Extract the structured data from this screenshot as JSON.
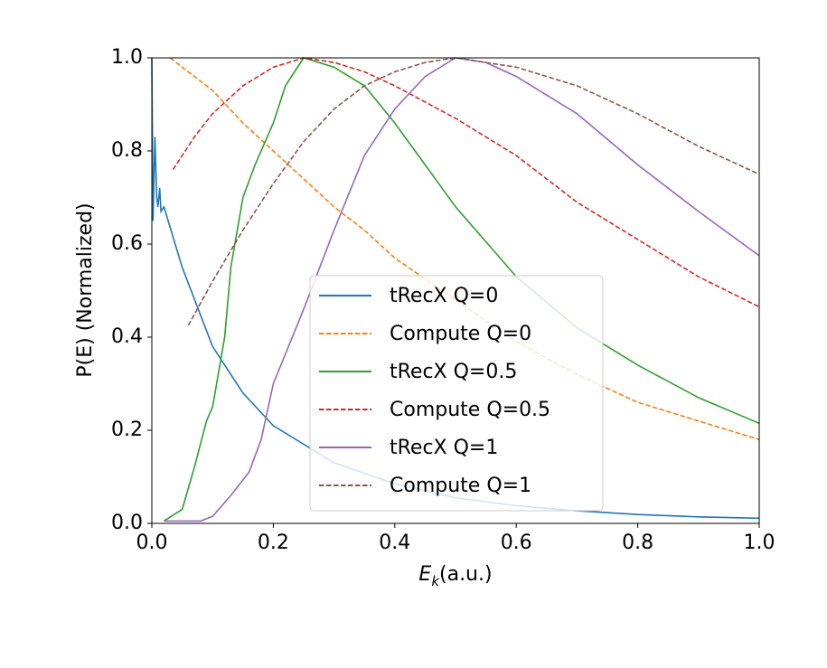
{
  "chart_data": {
    "type": "line",
    "xlabel": [
      "E",
      "k",
      "(a.u.)"
    ],
    "ylabel": "P(E) (Normalized)",
    "xlim": [
      0,
      1
    ],
    "ylim": [
      0,
      1
    ],
    "xticks": [
      {
        "value": 0,
        "label": "0.0"
      },
      0.2,
      0.4,
      0.6,
      0.8,
      {
        "value": 1,
        "label": "1.0"
      }
    ],
    "yticks": [
      {
        "value": 0,
        "label": "0.0"
      },
      0.2,
      0.4,
      0.6,
      0.8,
      {
        "value": 1,
        "label": "1.0"
      }
    ],
    "legend": "lower center",
    "series": [
      {
        "name": "tRecX Q=0",
        "color": "#1f77b4",
        "dashed": false,
        "x": [
          0,
          0.002,
          0.005,
          0.008,
          0.01,
          0.013,
          0.015,
          0.02,
          0.05,
          0.1,
          0.15,
          0.2,
          0.3,
          0.4,
          0.5,
          0.6,
          0.7,
          0.8,
          0.9,
          1.0
        ],
        "values": [
          1.0,
          0.65,
          0.83,
          0.7,
          0.68,
          0.72,
          0.67,
          0.68,
          0.55,
          0.38,
          0.28,
          0.21,
          0.13,
          0.085,
          0.055,
          0.038,
          0.027,
          0.019,
          0.014,
          0.011
        ]
      },
      {
        "name": "Compute Q=0",
        "color": "#ff7f0e",
        "dashed": true,
        "x": [
          0.03,
          0.1,
          0.15,
          0.2,
          0.25,
          0.3,
          0.35,
          0.4,
          0.5,
          0.6,
          0.7,
          0.8,
          0.9,
          1.0
        ],
        "values": [
          1.0,
          0.93,
          0.86,
          0.8,
          0.74,
          0.68,
          0.63,
          0.57,
          0.48,
          0.39,
          0.32,
          0.26,
          0.22,
          0.18
        ]
      },
      {
        "name": "tRecX Q=0.5",
        "color": "#2ca02c",
        "dashed": false,
        "x": [
          0.02,
          0.05,
          0.07,
          0.09,
          0.1,
          0.12,
          0.13,
          0.15,
          0.17,
          0.2,
          0.22,
          0.25,
          0.3,
          0.35,
          0.4,
          0.45,
          0.5,
          0.6,
          0.7,
          0.8,
          0.9,
          1.0
        ],
        "values": [
          0.005,
          0.03,
          0.12,
          0.22,
          0.25,
          0.4,
          0.55,
          0.7,
          0.77,
          0.86,
          0.94,
          1.0,
          0.98,
          0.94,
          0.86,
          0.77,
          0.68,
          0.53,
          0.42,
          0.34,
          0.27,
          0.215
        ]
      },
      {
        "name": "Compute Q=0.5",
        "color": "#d62728",
        "dashed": true,
        "x": [
          0.035,
          0.07,
          0.1,
          0.15,
          0.2,
          0.25,
          0.3,
          0.35,
          0.4,
          0.5,
          0.6,
          0.7,
          0.8,
          0.9,
          1.0
        ],
        "values": [
          0.76,
          0.83,
          0.88,
          0.94,
          0.98,
          1.0,
          0.99,
          0.97,
          0.94,
          0.87,
          0.79,
          0.69,
          0.61,
          0.53,
          0.465
        ]
      },
      {
        "name": "tRecX Q=1",
        "color": "#9467bd",
        "dashed": false,
        "x": [
          0.02,
          0.08,
          0.1,
          0.13,
          0.16,
          0.18,
          0.2,
          0.25,
          0.3,
          0.35,
          0.4,
          0.45,
          0.5,
          0.55,
          0.6,
          0.7,
          0.8,
          0.9,
          1.0
        ],
        "values": [
          0.005,
          0.005,
          0.015,
          0.06,
          0.11,
          0.18,
          0.3,
          0.46,
          0.63,
          0.79,
          0.89,
          0.96,
          1.0,
          0.99,
          0.96,
          0.88,
          0.77,
          0.67,
          0.575
        ]
      },
      {
        "name": "Compute Q=1",
        "color": "#8c564b",
        "dashed": true,
        "x": [
          0.06,
          0.1,
          0.15,
          0.2,
          0.25,
          0.3,
          0.35,
          0.4,
          0.45,
          0.5,
          0.6,
          0.7,
          0.8,
          0.9,
          1.0
        ],
        "values": [
          0.425,
          0.52,
          0.63,
          0.73,
          0.82,
          0.89,
          0.94,
          0.97,
          0.99,
          1.0,
          0.98,
          0.94,
          0.88,
          0.81,
          0.75
        ]
      }
    ]
  }
}
